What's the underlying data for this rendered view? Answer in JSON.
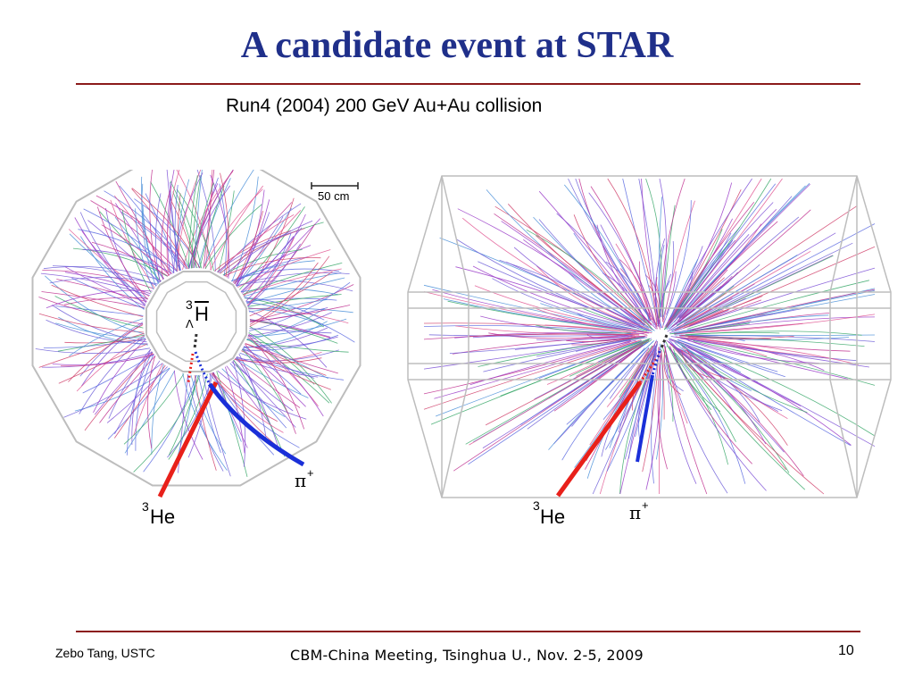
{
  "slide": {
    "title": "A candidate event at STAR",
    "subtitle": "Run4 (2004) 200 GeV Au+Au collision",
    "scale_bar_label": "50 cm",
    "left_panel": {
      "label_hypertriton_mass": "3",
      "label_hypertriton_sub": "Λ",
      "label_hypertriton": "H",
      "label_he_mass": "3",
      "label_he": "He",
      "label_pion": "π",
      "label_pion_charge": "+"
    },
    "right_panel": {
      "label_he_mass": "3",
      "label_he": "He",
      "label_pion": "π",
      "label_pion_charge": "+"
    },
    "colors": {
      "title": "#1f2f8a",
      "rule": "#8b1a1a",
      "he_track": "#e8201a",
      "pion_track": "#1a2fd8",
      "detector_frame": "#bdbdbd"
    }
  },
  "footer": {
    "author": "Zebo Tang, USTC",
    "meeting": "CBM-China Meeting, Tsinghua U., Nov. 2-5, 2009",
    "page_number": "10"
  }
}
